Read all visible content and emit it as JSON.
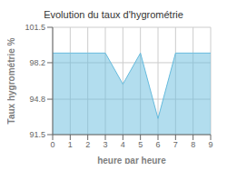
{
  "chart_data": {
    "type": "area",
    "title": "Evolution du taux d'hygrométrie",
    "xlabel": "heure par heure",
    "ylabel": "Taux hygrométrie %",
    "x": [
      0,
      1,
      2,
      3,
      4,
      5,
      6,
      7,
      8,
      9
    ],
    "values": [
      99.1,
      99.1,
      99.1,
      99.1,
      96.2,
      99.1,
      93.0,
      99.1,
      99.1,
      99.1
    ],
    "color": "#66bbdd",
    "xlim": [
      0,
      9
    ],
    "ylim": [
      91.5,
      101.5
    ],
    "xticks": [
      0,
      1,
      2,
      3,
      4,
      5,
      6,
      7,
      8,
      9
    ],
    "yticks": [
      91.5,
      94.8,
      98.2,
      101.5
    ],
    "grid": true
  }
}
